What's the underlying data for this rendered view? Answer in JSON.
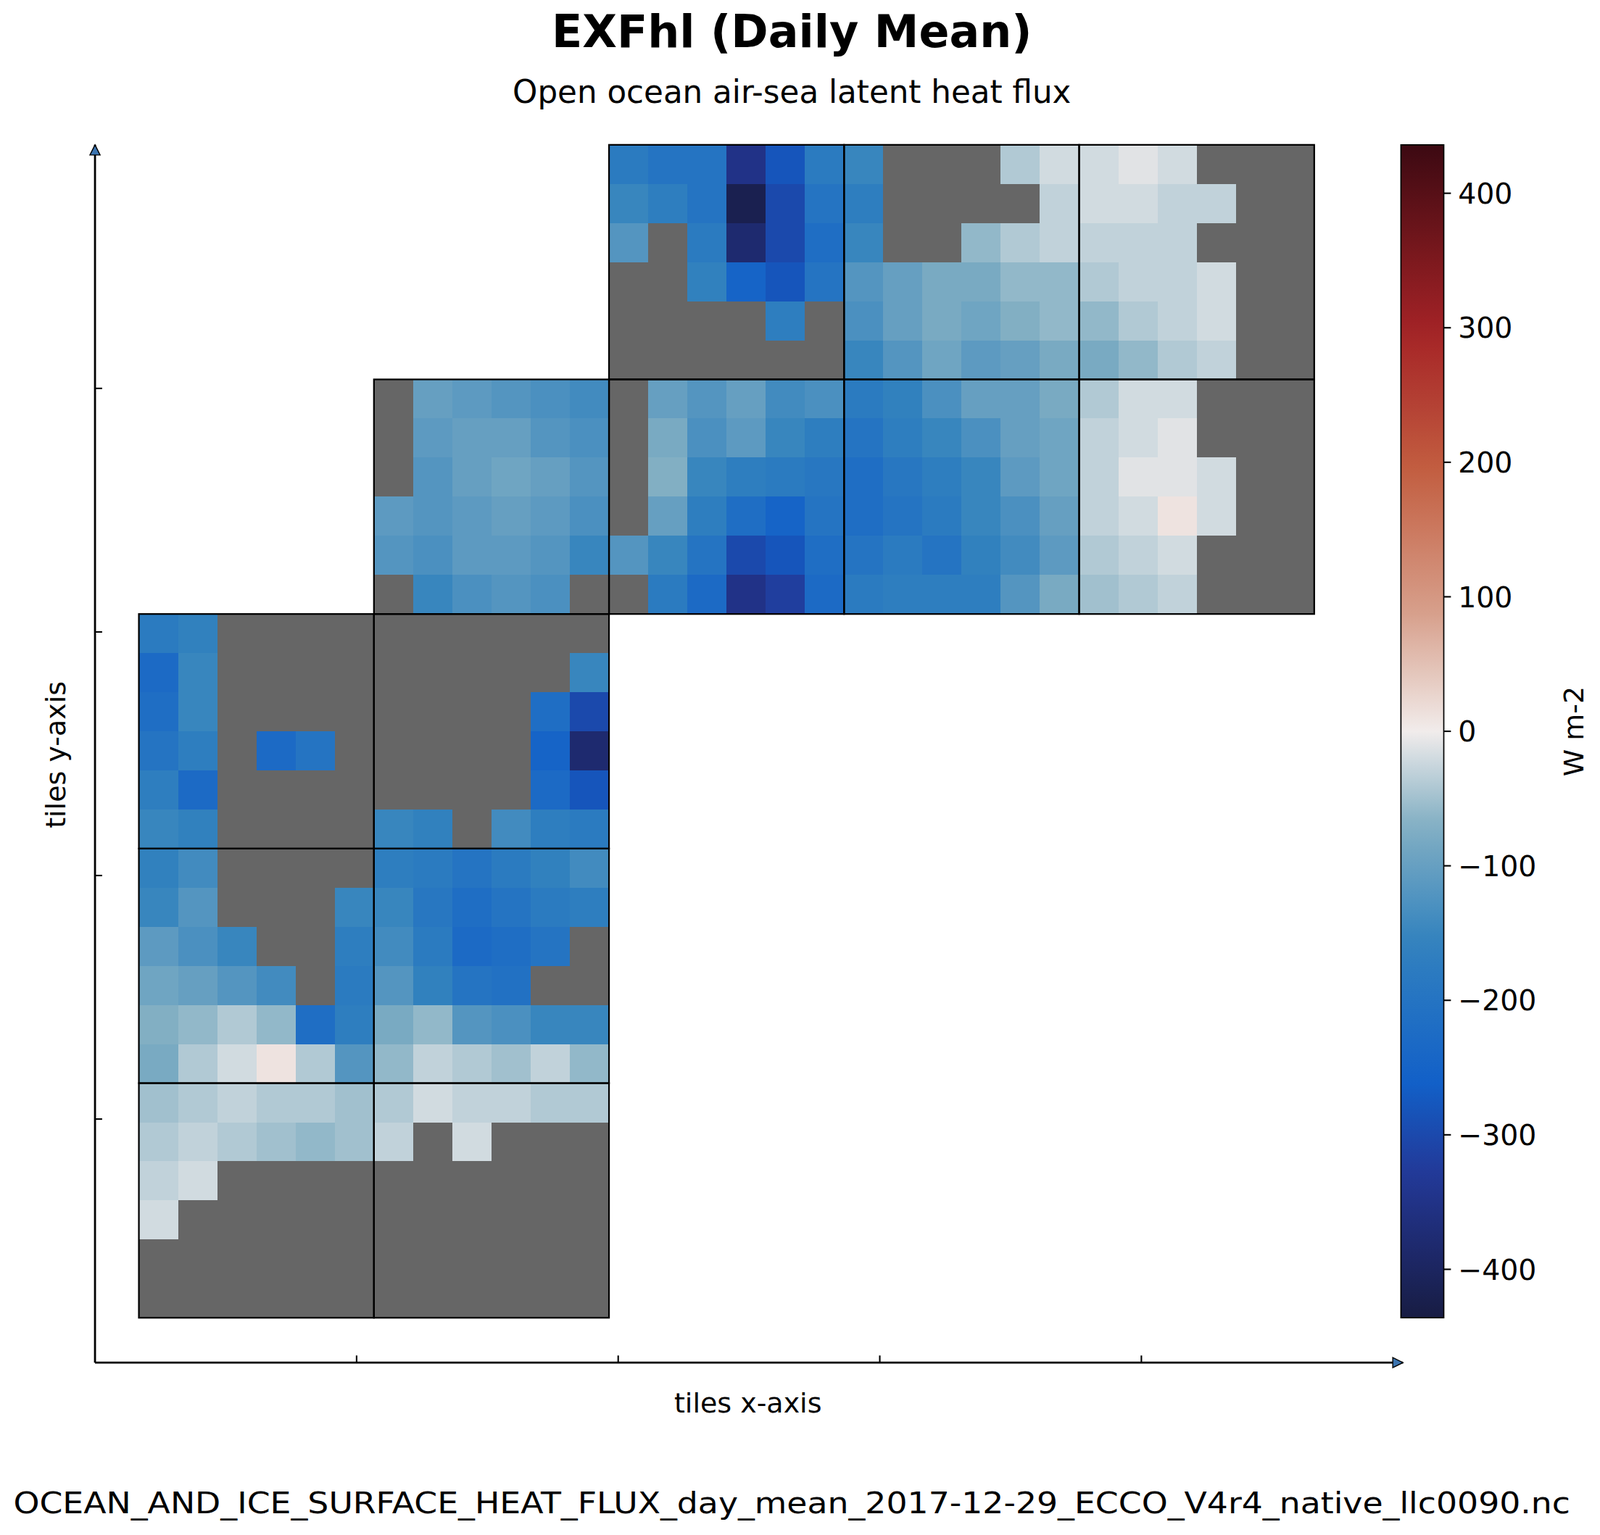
{
  "chart_data": {
    "type": "heatmap",
    "title": "EXFhl (Daily Mean)",
    "subtitle": "Open ocean air-sea latent heat flux",
    "x_label": "tiles x-axis",
    "y_label": "tiles y-axis",
    "footer": "OCEAN_AND_ICE_SURFACE_HEAT_FLUX_day_mean_2017-12-29_ECCO_V4r4_native_llc0090.nc",
    "tick_labels": false,
    "xlim": [
      0,
      5
    ],
    "xticks": [
      1,
      2,
      3,
      4
    ],
    "ylim": [
      0,
      5
    ],
    "yticks": [
      1,
      2,
      3,
      4
    ],
    "colorbar": {
      "label": "W m-2",
      "lim": [
        -436,
        436
      ],
      "ticks": [
        {
          "value": -400,
          "label": "−400"
        },
        {
          "value": -300,
          "label": "−300"
        },
        {
          "value": -200,
          "label": "−200"
        },
        {
          "value": -100,
          "label": "−100"
        },
        0,
        100,
        200,
        300,
        400
      ]
    },
    "tiles": [
      {
        "col": 0,
        "row": 2,
        "cells": [
          [
            -180,
            -160,
            null,
            null,
            null,
            null
          ],
          [
            -230,
            -150,
            null,
            null,
            null,
            null
          ],
          [
            -220,
            -150,
            null,
            null,
            null,
            null
          ],
          [
            -200,
            -170,
            null,
            -230,
            -200,
            null
          ],
          [
            -170,
            -230,
            null,
            null,
            null,
            null
          ],
          [
            -150,
            -160,
            null,
            null,
            null,
            null
          ]
        ]
      },
      {
        "col": 1,
        "row": 2,
        "cells": [
          [
            null,
            null,
            null,
            null,
            null,
            null
          ],
          [
            null,
            null,
            null,
            null,
            null,
            -150
          ],
          [
            null,
            null,
            null,
            null,
            -220,
            -300
          ],
          [
            null,
            null,
            null,
            null,
            -250,
            -380
          ],
          [
            null,
            null,
            null,
            null,
            -230,
            -280
          ],
          [
            -150,
            -160,
            null,
            -140,
            -170,
            -180
          ]
        ]
      },
      {
        "col": 0,
        "row": 3,
        "cells": [
          [
            -160,
            -140,
            null,
            null,
            null,
            null
          ],
          [
            -150,
            -120,
            null,
            null,
            null,
            -150
          ],
          [
            -110,
            -130,
            -150,
            null,
            null,
            -170
          ],
          [
            -90,
            -100,
            -120,
            -140,
            null,
            -180
          ],
          [
            -70,
            -60,
            -40,
            -60,
            -220,
            -170
          ],
          [
            -80,
            -40,
            -20,
            10,
            -40,
            -120
          ]
        ]
      },
      {
        "col": 1,
        "row": 3,
        "cells": [
          [
            -170,
            -180,
            -200,
            -180,
            -160,
            -140
          ],
          [
            -150,
            -190,
            -220,
            -200,
            -180,
            -170
          ],
          [
            -140,
            -180,
            -230,
            -220,
            -200,
            null
          ],
          [
            -120,
            -160,
            -200,
            -210,
            null,
            null
          ],
          [
            -80,
            -60,
            -120,
            -130,
            -150,
            -150
          ],
          [
            -60,
            -30,
            -40,
            -50,
            -30,
            -60
          ]
        ]
      },
      {
        "col": 0,
        "row": 4,
        "cells": [
          [
            -50,
            -40,
            -30,
            -40,
            -40,
            -50
          ],
          [
            -40,
            -30,
            -40,
            -50,
            -60,
            -50
          ],
          [
            -30,
            -20,
            null,
            null,
            null,
            null
          ],
          [
            -20,
            null,
            null,
            null,
            null,
            null
          ],
          [
            null,
            null,
            null,
            null,
            null,
            null
          ],
          [
            null,
            null,
            null,
            null,
            null,
            null
          ]
        ]
      },
      {
        "col": 1,
        "row": 4,
        "cells": [
          [
            -40,
            -20,
            -30,
            -30,
            -40,
            -40
          ],
          [
            -30,
            null,
            -20,
            null,
            null,
            null
          ],
          [
            null,
            null,
            null,
            null,
            null,
            null
          ],
          [
            null,
            null,
            null,
            null,
            null,
            null
          ],
          [
            null,
            null,
            null,
            null,
            null,
            null
          ],
          [
            null,
            null,
            null,
            null,
            null,
            null
          ]
        ]
      },
      {
        "col": 1,
        "row": 1,
        "cells": [
          [
            null,
            -100,
            -110,
            -120,
            -130,
            -140
          ],
          [
            null,
            -110,
            -100,
            -100,
            -120,
            -130
          ],
          [
            null,
            -120,
            -100,
            -90,
            -100,
            -120
          ],
          [
            -110,
            -120,
            -110,
            -100,
            -110,
            -130
          ],
          [
            -120,
            -130,
            -110,
            -110,
            -120,
            -150
          ],
          [
            null,
            -150,
            -130,
            -120,
            -130,
            null
          ]
        ]
      },
      {
        "col": 2,
        "row": 0,
        "cells": [
          [
            -180,
            -200,
            -200,
            -350,
            -280,
            -180
          ],
          [
            -150,
            -170,
            -200,
            -420,
            -300,
            -200
          ],
          [
            -120,
            null,
            -180,
            -380,
            -300,
            -220
          ],
          [
            null,
            null,
            -160,
            -250,
            -280,
            -200
          ],
          [
            null,
            null,
            null,
            null,
            -170,
            null
          ],
          [
            null,
            null,
            null,
            null,
            null,
            null
          ]
        ]
      },
      {
        "col": 3,
        "row": 0,
        "cells": [
          [
            -150,
            null,
            null,
            null,
            -40,
            -20
          ],
          [
            -170,
            null,
            null,
            null,
            null,
            -30
          ],
          [
            -150,
            null,
            null,
            -60,
            -40,
            -30
          ],
          [
            -120,
            -100,
            -80,
            -80,
            -60,
            -60
          ],
          [
            -130,
            -100,
            -80,
            -90,
            -70,
            -60
          ],
          [
            -150,
            -120,
            -90,
            -110,
            -100,
            -80
          ]
        ]
      },
      {
        "col": 4,
        "row": 0,
        "cells": [
          [
            -20,
            -10,
            -20,
            null,
            null,
            null
          ],
          [
            -20,
            -20,
            -30,
            -30,
            null,
            null
          ],
          [
            -30,
            -30,
            -30,
            null,
            null,
            null
          ],
          [
            -40,
            -30,
            -30,
            -20,
            null,
            null
          ],
          [
            -60,
            -40,
            -30,
            -20,
            null,
            null
          ],
          [
            -80,
            -60,
            -40,
            -30,
            null,
            null
          ]
        ]
      },
      {
        "col": 2,
        "row": 1,
        "cells": [
          [
            null,
            -100,
            -120,
            -100,
            -140,
            -130
          ],
          [
            null,
            -80,
            -130,
            -110,
            -150,
            -170
          ],
          [
            null,
            -70,
            -150,
            -170,
            -180,
            -190
          ],
          [
            null,
            -100,
            -170,
            -220,
            -250,
            -200
          ],
          [
            -120,
            -150,
            -200,
            -300,
            -280,
            -220
          ],
          [
            null,
            -180,
            -230,
            -350,
            -320,
            -230
          ]
        ]
      },
      {
        "col": 3,
        "row": 1,
        "cells": [
          [
            -180,
            -160,
            -130,
            -100,
            -100,
            -80
          ],
          [
            -200,
            -170,
            -150,
            -130,
            -100,
            -90
          ],
          [
            -220,
            -190,
            -170,
            -150,
            -110,
            -90
          ],
          [
            -220,
            -200,
            -180,
            -150,
            -130,
            -100
          ],
          [
            -200,
            -180,
            -200,
            -160,
            -140,
            -110
          ],
          [
            -180,
            -170,
            -170,
            -170,
            -120,
            -80
          ]
        ]
      },
      {
        "col": 4,
        "row": 1,
        "cells": [
          [
            -40,
            -20,
            -20,
            null,
            null,
            null
          ],
          [
            -30,
            -20,
            -10,
            null,
            null,
            null
          ],
          [
            -30,
            -10,
            -10,
            -20,
            null,
            null
          ],
          [
            -30,
            -20,
            10,
            -20,
            null,
            null
          ],
          [
            -40,
            -30,
            -20,
            null,
            null,
            null
          ],
          [
            -50,
            -40,
            -30,
            null,
            null,
            null
          ]
        ]
      }
    ]
  }
}
